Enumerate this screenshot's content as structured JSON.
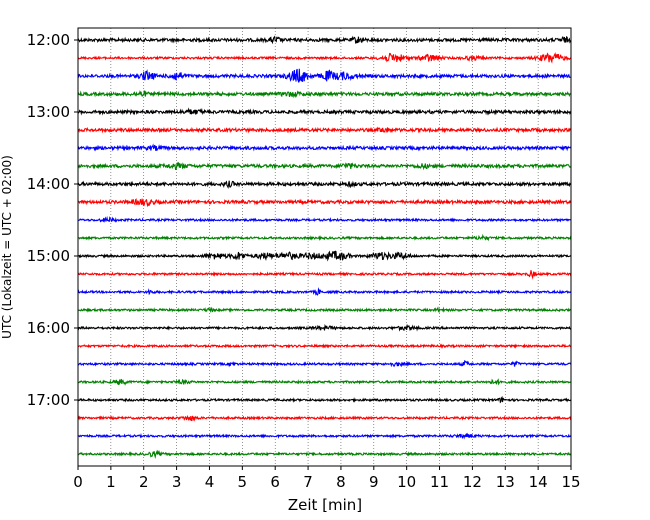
{
  "chart_data": {
    "type": "line",
    "title": "",
    "xlabel": "Zeit  [min]",
    "ylabel": "UTC (Lokalzeit = UTC + 02:00)",
    "xlim": [
      0,
      15
    ],
    "x_ticks": [
      "0",
      "1",
      "2",
      "3",
      "4",
      "5",
      "6",
      "7",
      "8",
      "9",
      "10",
      "11",
      "12",
      "13",
      "14",
      "15"
    ],
    "y_ticks": [
      "12:00",
      "13:00",
      "14:00",
      "15:00",
      "16:00",
      "17:00"
    ],
    "grid": "vertical dotted",
    "trace_colors": [
      "#000000",
      "#ff0000",
      "#0000ff",
      "#008000"
    ],
    "trace_interval_min": 15,
    "traces": [
      {
        "start": "12:00",
        "color": "#000000",
        "amplitude": 3,
        "events": [
          {
            "t": 6.0,
            "amp": 5,
            "width": 0.15
          },
          {
            "t": 8.5,
            "amp": 5,
            "width": 0.15
          },
          {
            "t": 14.8,
            "amp": 4,
            "width": 0.15
          }
        ]
      },
      {
        "start": "12:15",
        "color": "#ff0000",
        "amplitude": 2,
        "events": [
          {
            "t": 9.6,
            "amp": 8,
            "width": 0.35
          },
          {
            "t": 10.7,
            "amp": 6,
            "width": 0.3
          },
          {
            "t": 12.0,
            "amp": 3,
            "width": 0.3
          },
          {
            "t": 14.4,
            "amp": 9,
            "width": 0.35
          }
        ]
      },
      {
        "start": "12:30",
        "color": "#0000ff",
        "amplitude": 3,
        "events": [
          {
            "t": 2.1,
            "amp": 8,
            "width": 0.2
          },
          {
            "t": 3.0,
            "amp": 7,
            "width": 0.2
          },
          {
            "t": 6.7,
            "amp": 12,
            "width": 0.3
          },
          {
            "t": 7.6,
            "amp": 8,
            "width": 0.2
          },
          {
            "t": 8.1,
            "amp": 6,
            "width": 0.3
          }
        ]
      },
      {
        "start": "12:45",
        "color": "#008000",
        "amplitude": 3,
        "events": [
          {
            "t": 1.9,
            "amp": 4,
            "width": 0.2
          },
          {
            "t": 6.5,
            "amp": 3,
            "width": 0.3
          }
        ]
      },
      {
        "start": "13:00",
        "color": "#000000",
        "amplitude": 3,
        "events": [
          {
            "t": 3.5,
            "amp": 3,
            "width": 0.3
          }
        ]
      },
      {
        "start": "13:15",
        "color": "#ff0000",
        "amplitude": 3,
        "events": [
          {
            "t": 9.3,
            "amp": 4,
            "width": 0.15
          }
        ]
      },
      {
        "start": "13:30",
        "color": "#0000ff",
        "amplitude": 3,
        "events": [
          {
            "t": 2.3,
            "amp": 3,
            "width": 0.2
          }
        ]
      },
      {
        "start": "13:45",
        "color": "#008000",
        "amplitude": 3,
        "events": [
          {
            "t": 3.0,
            "amp": 4,
            "width": 0.3
          },
          {
            "t": 8.2,
            "amp": 4,
            "width": 0.2
          },
          {
            "t": 10.5,
            "amp": 3,
            "width": 0.2
          }
        ]
      },
      {
        "start": "14:00",
        "color": "#000000",
        "amplitude": 3,
        "events": [
          {
            "t": 4.6,
            "amp": 4,
            "width": 0.15
          },
          {
            "t": 8.3,
            "amp": 3,
            "width": 0.15
          }
        ]
      },
      {
        "start": "14:15",
        "color": "#ff0000",
        "amplitude": 3,
        "events": [
          {
            "t": 2.0,
            "amp": 5,
            "width": 0.3
          }
        ]
      },
      {
        "start": "14:30",
        "color": "#0000ff",
        "amplitude": 2,
        "events": [
          {
            "t": 0.9,
            "amp": 3,
            "width": 0.2
          }
        ]
      },
      {
        "start": "14:45",
        "color": "#008000",
        "amplitude": 2,
        "events": [
          {
            "t": 12.3,
            "amp": 3,
            "width": 0.2
          }
        ]
      },
      {
        "start": "15:00",
        "color": "#000000",
        "amplitude": 2,
        "events": [
          {
            "t": 4.2,
            "amp": 5,
            "width": 0.3
          },
          {
            "t": 4.9,
            "amp": 7,
            "width": 0.2
          },
          {
            "t": 5.7,
            "amp": 5,
            "width": 0.3
          },
          {
            "t": 6.4,
            "amp": 6,
            "width": 0.3
          },
          {
            "t": 7.1,
            "amp": 5,
            "width": 0.3
          },
          {
            "t": 7.7,
            "amp": 5,
            "width": 0.3
          },
          {
            "t": 8.0,
            "amp": 5,
            "width": 0.3
          },
          {
            "t": 9.2,
            "amp": 6,
            "width": 0.3
          },
          {
            "t": 9.8,
            "amp": 5,
            "width": 0.3
          }
        ]
      },
      {
        "start": "15:15",
        "color": "#ff0000",
        "amplitude": 2,
        "events": [
          {
            "t": 13.8,
            "amp": 6,
            "width": 0.1
          }
        ]
      },
      {
        "start": "15:30",
        "color": "#0000ff",
        "amplitude": 2,
        "events": [
          {
            "t": 2.2,
            "amp": 4,
            "width": 0.08
          },
          {
            "t": 7.3,
            "amp": 5,
            "width": 0.08
          }
        ]
      },
      {
        "start": "15:45",
        "color": "#008000",
        "amplitude": 2,
        "events": [
          {
            "t": 4.0,
            "amp": 3,
            "width": 0.1
          },
          {
            "t": 11.0,
            "amp": 3,
            "width": 0.1
          }
        ]
      },
      {
        "start": "16:00",
        "color": "#000000",
        "amplitude": 2,
        "events": [
          {
            "t": 7.5,
            "amp": 3,
            "width": 0.3
          },
          {
            "t": 10.0,
            "amp": 3,
            "width": 0.3
          }
        ]
      },
      {
        "start": "16:15",
        "color": "#ff0000",
        "amplitude": 2,
        "events": []
      },
      {
        "start": "16:30",
        "color": "#0000ff",
        "amplitude": 2,
        "events": [
          {
            "t": 4.7,
            "amp": 3,
            "width": 0.1
          },
          {
            "t": 9.7,
            "amp": 3,
            "width": 0.2
          },
          {
            "t": 11.8,
            "amp": 5,
            "width": 0.1
          },
          {
            "t": 13.3,
            "amp": 4,
            "width": 0.1
          }
        ]
      },
      {
        "start": "16:45",
        "color": "#008000",
        "amplitude": 2,
        "events": [
          {
            "t": 1.3,
            "amp": 4,
            "width": 0.2
          },
          {
            "t": 3.2,
            "amp": 3,
            "width": 0.2
          },
          {
            "t": 12.7,
            "amp": 3,
            "width": 0.2
          }
        ]
      },
      {
        "start": "17:00",
        "color": "#000000",
        "amplitude": 2,
        "events": [
          {
            "t": 12.9,
            "amp": 4,
            "width": 0.1
          }
        ]
      },
      {
        "start": "17:15",
        "color": "#ff0000",
        "amplitude": 2,
        "events": [
          {
            "t": 3.4,
            "amp": 4,
            "width": 0.2
          }
        ]
      },
      {
        "start": "17:30",
        "color": "#0000ff",
        "amplitude": 2,
        "events": [
          {
            "t": 11.8,
            "amp": 3,
            "width": 0.3
          }
        ]
      },
      {
        "start": "17:45",
        "color": "#008000",
        "amplitude": 2,
        "events": [
          {
            "t": 2.3,
            "amp": 4,
            "width": 0.2
          }
        ]
      }
    ]
  }
}
